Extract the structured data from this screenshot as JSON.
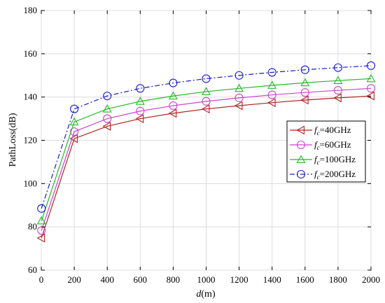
{
  "chart_data": {
    "type": "line",
    "xlabel_italic": "d",
    "xlabel_rest": "(m)",
    "ylabel": "PathLoss(dB)",
    "xlim": [
      0,
      2000
    ],
    "ylim": [
      60,
      180
    ],
    "xticks": [
      0,
      200,
      400,
      600,
      800,
      1000,
      1200,
      1400,
      1600,
      1800,
      2000
    ],
    "yticks": [
      60,
      80,
      100,
      120,
      140,
      160,
      180
    ],
    "grid": true,
    "legend_position": "right",
    "x": [
      1,
      200,
      400,
      600,
      800,
      1000,
      1200,
      1400,
      1600,
      1800,
      2000
    ],
    "series": [
      {
        "name_sym": "f",
        "name_sub": "c",
        "name_rest": "=40GHz",
        "color": "#b22222",
        "marker": "triangle-left",
        "dash": "solid",
        "values": [
          74.8,
          120.8,
          126.5,
          130.0,
          132.5,
          134.5,
          136.0,
          137.4,
          138.6,
          139.6,
          140.5
        ]
      },
      {
        "name_sym": "f",
        "name_sub": "c",
        "name_rest": "=60GHz",
        "color": "#cc44cc",
        "marker": "circle",
        "dash": "solid",
        "values": [
          78.3,
          124.0,
          130.0,
          133.5,
          136.0,
          138.0,
          139.6,
          141.0,
          142.1,
          143.1,
          144.0
        ]
      },
      {
        "name_sym": "f",
        "name_sub": "c",
        "name_rest": "=100GHz",
        "color": "#22bb22",
        "marker": "triangle-up",
        "dash": "solid",
        "values": [
          82.8,
          128.5,
          134.5,
          138.0,
          140.5,
          142.5,
          144.0,
          145.4,
          146.6,
          147.6,
          148.5
        ]
      },
      {
        "name_sym": "f",
        "name_sub": "c",
        "name_rest": "=200GHz",
        "color": "#1a1acc",
        "marker": "circle",
        "dash": "dashdot",
        "values": [
          88.5,
          134.5,
          140.5,
          144.0,
          146.5,
          148.5,
          150.0,
          151.4,
          152.6,
          153.6,
          154.5
        ]
      }
    ]
  }
}
